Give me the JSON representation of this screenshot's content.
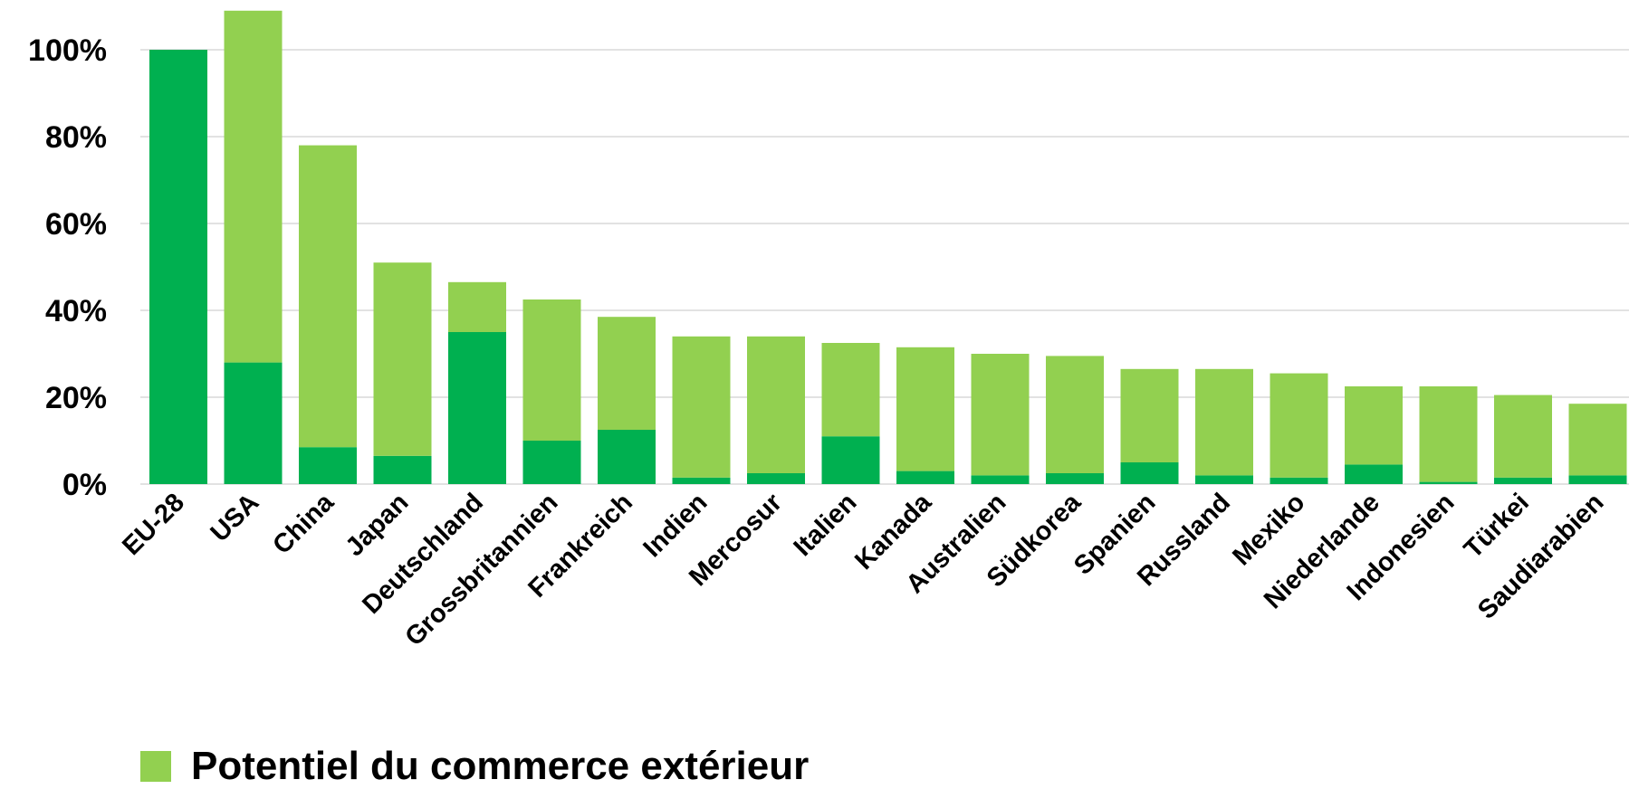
{
  "chart_data": {
    "type": "bar",
    "stacked": true,
    "categories": [
      "EU-28",
      "USA",
      "China",
      "Japan",
      "Deutschland",
      "Grossbritannien",
      "Frankreich",
      "Indien",
      "Mercosur",
      "Italien",
      "Kanada",
      "Australien",
      "Südkorea",
      "Spanien",
      "Russland",
      "Mexiko",
      "Niederlande",
      "Indonesien",
      "Türkei",
      "Saudiarabien"
    ],
    "series": [
      {
        "values": [
          100,
          28,
          8.5,
          6.5,
          35,
          10,
          12.5,
          1.5,
          2.5,
          11,
          3,
          2,
          2.5,
          5,
          2,
          1.5,
          4.5,
          0.5,
          1.5,
          2
        ],
        "color": "#00b050"
      },
      {
        "name": "Potentiel du commerce extérieur",
        "values": [
          0,
          81,
          69.5,
          44.5,
          11.5,
          32.5,
          26,
          32.5,
          31.5,
          21.5,
          28.5,
          28,
          27,
          21.5,
          24.5,
          24,
          18,
          22,
          19,
          16.5
        ],
        "color": "#92d050"
      }
    ],
    "ylim": [
      0,
      100
    ],
    "yticks": [
      "0%",
      "20%",
      "40%",
      "60%",
      "80%",
      "100%"
    ],
    "ytick_values": [
      0,
      20,
      40,
      60,
      80,
      100
    ],
    "grid": true,
    "gridline_color": "#d9d9d9",
    "legend_position": "bottom-left",
    "legend": [
      {
        "label": "Potentiel du commerce extérieur",
        "color": "#92d050"
      }
    ]
  }
}
